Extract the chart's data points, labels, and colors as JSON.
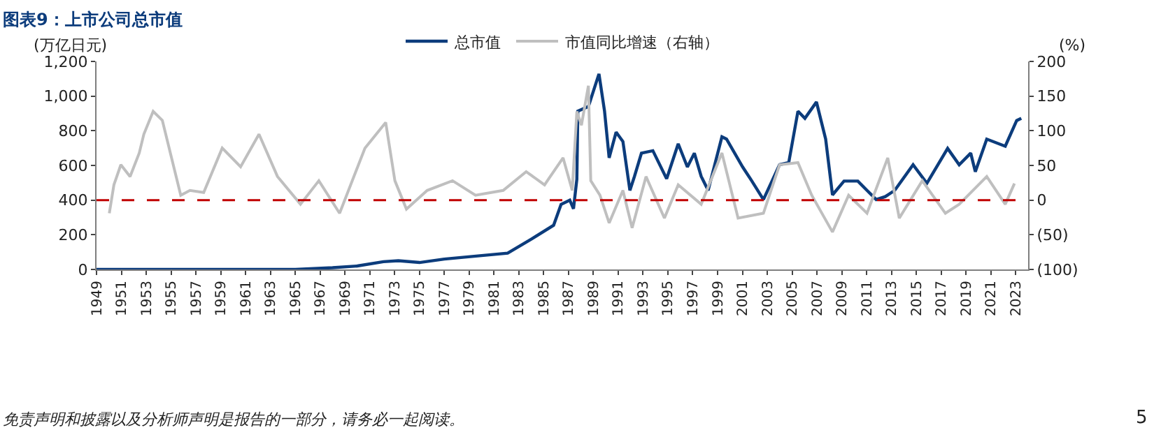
{
  "chart_data": {
    "type": "line",
    "title": "图表9：上市公司总市值",
    "ylabel": "(万亿日元)",
    "y2label": "(%)",
    "xlim": [
      1949,
      2024
    ],
    "xticks": [
      1949,
      1951,
      1953,
      1955,
      1957,
      1959,
      1961,
      1963,
      1965,
      1967,
      1969,
      1971,
      1973,
      1975,
      1977,
      1979,
      1981,
      1983,
      1985,
      1987,
      1989,
      1991,
      1993,
      1995,
      1997,
      1999,
      2001,
      2003,
      2005,
      2007,
      2009,
      2011,
      2013,
      2015,
      2017,
      2019,
      2021,
      2023
    ],
    "ylim": [
      0,
      1200
    ],
    "yticks": [
      0,
      200,
      400,
      600,
      800,
      {
        "value": 1000,
        "label": "1,000"
      },
      {
        "value": 1200,
        "label": "1,200"
      }
    ],
    "y2lim": [
      -100,
      200
    ],
    "y2ticks": [
      {
        "value": -100,
        "label": "(100)"
      },
      {
        "value": -50,
        "label": "(50)"
      },
      0,
      50,
      100,
      150,
      200
    ],
    "legend": "top",
    "marker": "none",
    "line_style": "solid",
    "ref_lines": [
      {
        "axis": "y2",
        "value": 0,
        "label": null,
        "color": "#c00000",
        "line_style": "dashed"
      }
    ],
    "series": [
      {
        "name": "总市值",
        "color": "#0c3c7c",
        "x": [
          1949,
          1955,
          1960,
          1965,
          1968,
          1970,
          1972.1,
          1973.3,
          1975,
          1977,
          1980,
          1982.1,
          1984,
          1985.8,
          1986.4,
          1987.1,
          1987.4,
          1987.67,
          1987.75,
          1988.6,
          1989.45,
          1989.9,
          1990.27,
          1990.83,
          1991.38,
          1991.94,
          1992.31,
          1992.87,
          1993.79,
          1994.9,
          1995.83,
          1996.57,
          1997.13,
          1997.68,
          1998.24,
          1999.35,
          1999.72,
          2001.02,
          2001.76,
          2002.69,
          2003.99,
          2004.73,
          2005.47,
          2006.03,
          2006.96,
          2007.7,
          2008.25,
          2009.18,
          2010.29,
          2011.03,
          2011.77,
          2012.5,
          2013.26,
          2014.74,
          2015.85,
          2017.52,
          2018.45,
          2019.38,
          2019.75,
          2020.67,
          2022.16,
          2023.08,
          2023.45
        ],
        "values": [
          0,
          0,
          0,
          0,
          10,
          20,
          45,
          50,
          40,
          60,
          80,
          94,
          175,
          255,
          375,
          400,
          350,
          520,
          913,
          940,
          1128,
          913,
          644,
          792,
          738,
          456,
          537,
          671,
          685,
          523,
          725,
          591,
          671,
          537,
          456,
          765,
          752,
          591,
          510,
          403,
          604,
          617,
          913,
          872,
          966,
          752,
          430,
          510,
          510,
          456,
          403,
          420,
          456,
          604,
          497,
          698,
          604,
          671,
          564,
          752,
          711,
          859,
          872
        ]
      },
      {
        "name": "市值同比增速（右轴）",
        "color": "#bfbfbf",
        "axis": "y2",
        "x": [
          1950.03,
          1950.4,
          1950.96,
          1951.7,
          1952.44,
          1952.81,
          1953.56,
          1954.3,
          1955.78,
          1956.52,
          1957.63,
          1959.12,
          1960.6,
          1962.08,
          1963.57,
          1965.42,
          1966.9,
          1968.57,
          1970.61,
          1972.28,
          1973.02,
          1973.95,
          1975.62,
          1977.66,
          1979.51,
          1981.74,
          1983.59,
          1985.07,
          1986.56,
          1987.3,
          1987.67,
          1988.04,
          1988.6,
          1988.79,
          1989.53,
          1990.27,
          1991.38,
          1992.12,
          1993.24,
          1994.72,
          1995.83,
          1997.68,
          1999.35,
          2000.65,
          2002.69,
          2003.99,
          2005.47,
          2006.58,
          2008.25,
          2009.55,
          2011.03,
          2012.7,
          2013.63,
          2015.48,
          2017.34,
          2018.45,
          2020.67,
          2022.16,
          2022.9
        ],
        "values": [
          -19,
          22,
          51,
          34,
          68,
          95,
          128,
          115,
          7,
          14,
          11,
          75,
          48,
          95,
          34,
          -6,
          28,
          -19,
          75,
          112,
          28,
          -13,
          14,
          28,
          7,
          14,
          41,
          22,
          61,
          14,
          128,
          108,
          165,
          28,
          7,
          -33,
          14,
          -40,
          34,
          -26,
          22,
          -6,
          68,
          -26,
          -19,
          51,
          54,
          7,
          -46,
          7,
          -19,
          61,
          -26,
          28,
          -19,
          -6,
          34,
          -6,
          24
        ]
      }
    ],
    "annotations": [
      "免责声明和披露以及分析师声明是报告的一部分，请务必一起阅读。",
      "5"
    ]
  }
}
